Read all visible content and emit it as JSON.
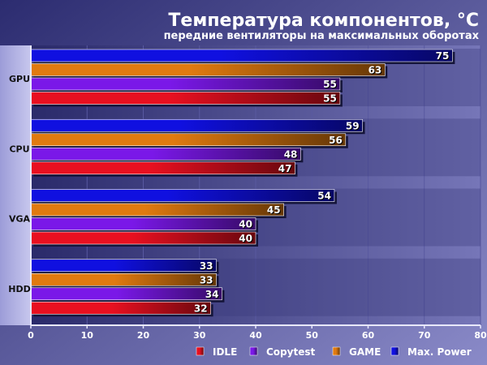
{
  "chart_data": {
    "type": "bar",
    "orientation": "horizontal",
    "title": "Температура компонентов, °C",
    "subtitle": "передние вентиляторы на максимальных оборотах",
    "categories": [
      "GPU",
      "CPU",
      "VGA",
      "HDD"
    ],
    "series": [
      {
        "name": "Max. Power",
        "color": "#1010e0",
        "values": [
          75,
          59,
          54,
          33
        ]
      },
      {
        "name": "GAME",
        "color": "#e07a10",
        "values": [
          63,
          56,
          45,
          33
        ]
      },
      {
        "name": "Copytest",
        "color": "#7a18e8",
        "values": [
          55,
          48,
          40,
          34
        ]
      },
      {
        "name": "IDLE",
        "color": "#e81020",
        "values": [
          55,
          47,
          40,
          32
        ]
      }
    ],
    "legend_order": [
      "IDLE",
      "Copytest",
      "GAME",
      "Max. Power"
    ],
    "xlim": [
      0,
      80
    ],
    "xticks": [
      0,
      10,
      20,
      30,
      40,
      50,
      60,
      70,
      80
    ],
    "grid": true,
    "legend_position": "bottom-right"
  }
}
